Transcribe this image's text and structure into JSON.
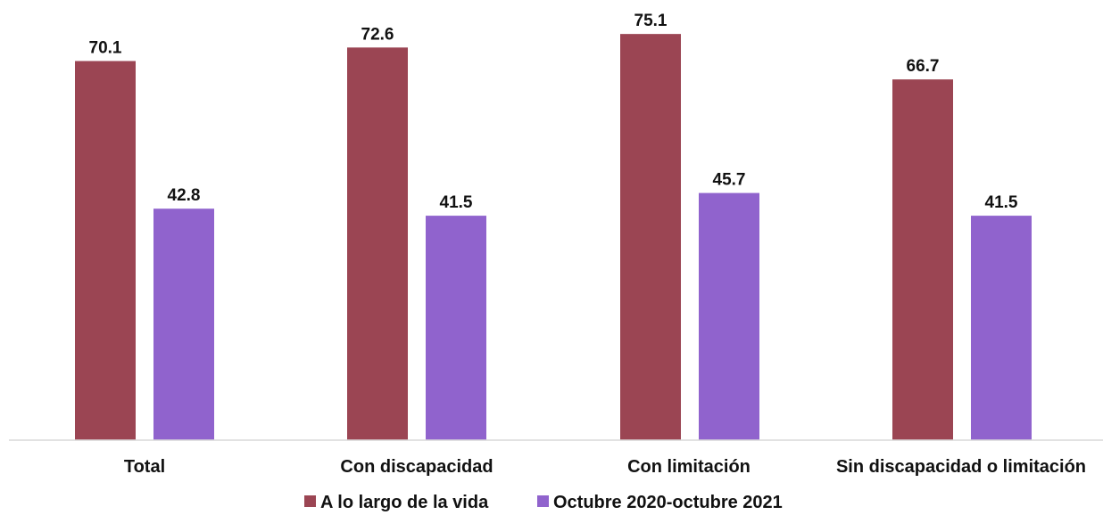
{
  "chart_data": {
    "type": "bar",
    "categories": [
      "Total",
      "Con discapacidad",
      "Con limitación",
      "Sin discapacidad o limitación"
    ],
    "series": [
      {
        "name": "A lo largo de la vida",
        "color": "#9B4553",
        "values": [
          70.1,
          72.6,
          75.1,
          66.7
        ]
      },
      {
        "name": "Octubre 2020-octubre 2021",
        "color": "#9063CD",
        "values": [
          42.8,
          41.5,
          45.7,
          41.5
        ]
      }
    ],
    "value_labels": [
      [
        "70.1",
        "72.6",
        "75.1",
        "66.7"
      ],
      [
        "42.8",
        "41.5",
        "45.7",
        "41.5"
      ]
    ],
    "ylim": [
      0,
      80
    ],
    "grid": false,
    "legend_position": "bottom",
    "axis_color": "#D9D9D9"
  }
}
